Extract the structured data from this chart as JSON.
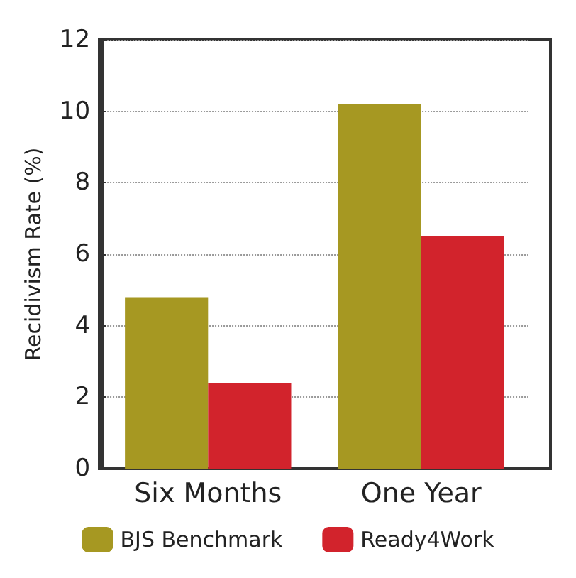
{
  "chart_data": {
    "type": "bar",
    "ylabel": "Recidivism Rate (%)",
    "categories": [
      "Six Months",
      "One Year"
    ],
    "series": [
      {
        "name": "BJS Benchmark",
        "color": "#a69822",
        "values": [
          4.8,
          10.2
        ]
      },
      {
        "name": "Ready4Work",
        "color": "#d2232c",
        "values": [
          2.4,
          6.5
        ]
      }
    ],
    "ylim": [
      0,
      12
    ],
    "yticks": [
      0,
      2,
      4,
      6,
      8,
      10,
      12
    ],
    "grid": "y",
    "legend": "bottom"
  }
}
